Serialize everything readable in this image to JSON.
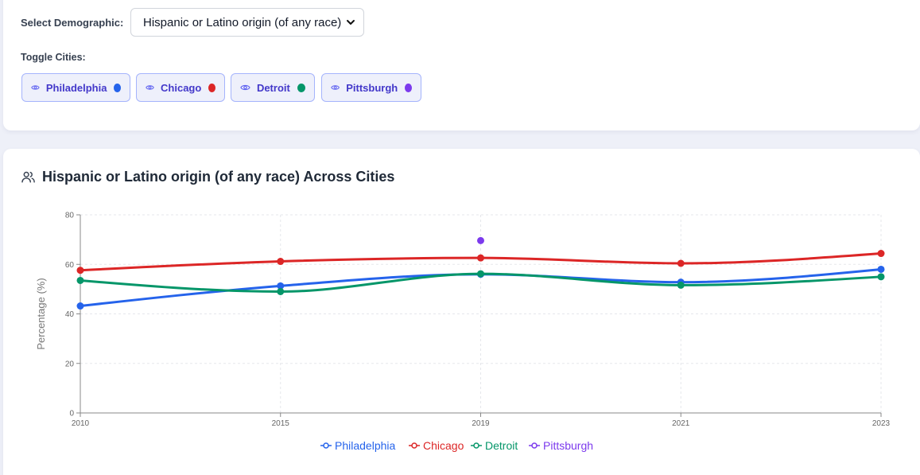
{
  "controls": {
    "demographic_label": "Select Demographic:",
    "selected_demographic": "Hispanic or Latino origin (of any race)",
    "toggle_label": "Toggle Cities:",
    "cities": [
      {
        "name": "Philadelphia",
        "color": "#2563eb"
      },
      {
        "name": "Chicago",
        "color": "#dc2626"
      },
      {
        "name": "Detroit",
        "color": "#059669"
      },
      {
        "name": "Pittsburgh",
        "color": "#7c3aed"
      }
    ]
  },
  "chart": {
    "title": "Hispanic or Latino origin (of any race) Across Cities"
  },
  "chart_data": {
    "type": "line",
    "categories": [
      "2010",
      "2015",
      "2019",
      "2021",
      "2023"
    ],
    "ylabel": "Percentage (%)",
    "xlabel": "",
    "ylim": [
      0,
      80
    ],
    "yticks": [
      0,
      20,
      40,
      60,
      80
    ],
    "grid": true,
    "legend_position": "bottom",
    "series": [
      {
        "name": "Philadelphia",
        "color": "#2563eb",
        "values": [
          43.2,
          51.3,
          56.0,
          52.8,
          58.0
        ]
      },
      {
        "name": "Chicago",
        "color": "#dc2626",
        "values": [
          57.6,
          61.2,
          62.6,
          60.4,
          64.4
        ]
      },
      {
        "name": "Detroit",
        "color": "#059669",
        "values": [
          53.5,
          49.0,
          56.2,
          51.6,
          55.0
        ]
      },
      {
        "name": "Pittsburgh",
        "color": "#7c3aed",
        "values": [
          null,
          null,
          69.6,
          null,
          null
        ]
      }
    ]
  }
}
